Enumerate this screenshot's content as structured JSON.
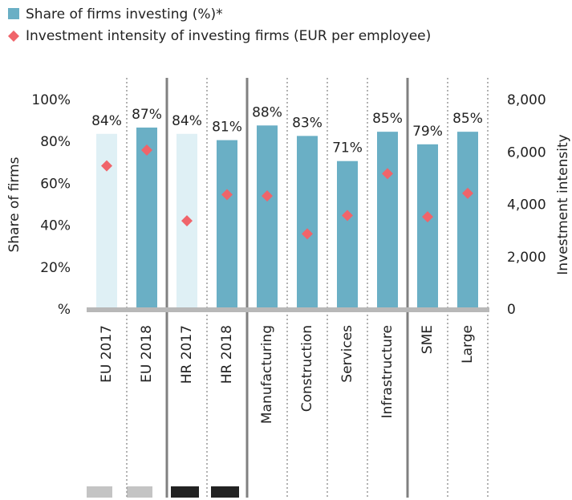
{
  "chart_data": {
    "type": "bar",
    "categories": [
      "EU 2017",
      "EU 2018",
      "HR 2017",
      "HR 2018",
      "Manufacturing",
      "Construction",
      "Services",
      "Infrastructure",
      "SME",
      "Large"
    ],
    "series": [
      {
        "name": "Share of firms investing (%)*",
        "color": "#6aafc5",
        "colors": [
          "#dff0f5",
          "#6aafc5",
          "#dff0f5",
          "#6aafc5",
          "#6aafc5",
          "#6aafc5",
          "#6aafc5",
          "#6aafc5",
          "#6aafc5",
          "#6aafc5"
        ],
        "values": [
          84,
          87,
          84,
          81,
          88,
          83,
          71,
          85,
          79,
          85
        ],
        "value_labels": [
          "84%",
          "87%",
          "84%",
          "81%",
          "88%",
          "83%",
          "71%",
          "85%",
          "79%",
          "85%"
        ]
      },
      {
        "name": "Investment intensity of investing firms (EUR per employee)",
        "color": "#f0646a",
        "axis": "y2",
        "values": [
          5500,
          6100,
          3400,
          4400,
          4350,
          2900,
          3600,
          5200,
          3550,
          4450
        ]
      }
    ],
    "ylabel": "Share of firms",
    "y2label": "Investment intensity",
    "ylim": [
      0,
      100
    ],
    "yticks": [
      {
        "value": 0,
        "label": "%"
      },
      {
        "value": 20,
        "label": "20%"
      },
      {
        "value": 40,
        "label": "40%"
      },
      {
        "value": 60,
        "label": "60%"
      },
      {
        "value": 80,
        "label": "80%"
      },
      {
        "value": 100,
        "label": "100%"
      }
    ],
    "y2lim": [
      0,
      8000
    ],
    "y2ticks": [
      0,
      {
        "value": 2000,
        "label": "2,000"
      },
      {
        "value": 4000,
        "label": "4,000"
      },
      {
        "value": 6000,
        "label": "6,000"
      },
      {
        "value": 8000,
        "label": "8,000"
      }
    ]
  }
}
